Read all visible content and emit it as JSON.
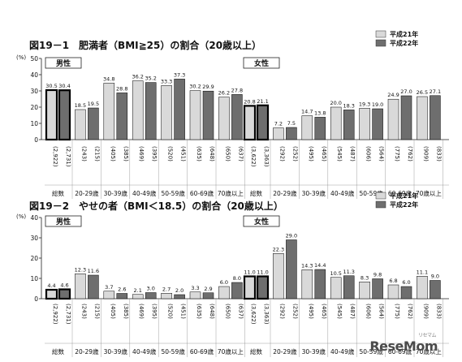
{
  "chart_data": [
    {
      "type": "bar",
      "title": "図19－1　肥満者（BMI≧25）の割合（20歳以上）",
      "ylabel": "(%)",
      "ylim": [
        0,
        50
      ],
      "yticks": [
        0,
        10,
        20,
        30,
        40,
        50
      ],
      "legend": [
        "平成21年",
        "平成22年"
      ],
      "legend_position": "top-right",
      "panels": [
        {
          "label": "男性",
          "groups": [
            {
              "label": "総数",
              "bars": [
                {
                  "value": 30.5,
                  "value_label": "30.5",
                  "n": "(2,922)"
                },
                {
                  "value": 30.4,
                  "value_label": "30.4",
                  "n": "(2,731)"
                }
              ]
            },
            {
              "label": "20-29歳",
              "bars": [
                {
                  "value": 18.5,
                  "value_label": "18.5",
                  "n": "(243)"
                },
                {
                  "value": 19.5,
                  "value_label": "19.5",
                  "n": "(215)"
                }
              ]
            },
            {
              "label": "30-39歳",
              "bars": [
                {
                  "value": 34.8,
                  "value_label": "34.8",
                  "n": "(405)"
                },
                {
                  "value": 28.8,
                  "value_label": "28.8",
                  "n": "(385)"
                }
              ]
            },
            {
              "label": "40-49歳",
              "bars": [
                {
                  "value": 36.2,
                  "value_label": "36.2",
                  "n": "(469)"
                },
                {
                  "value": 35.2,
                  "value_label": "35.2",
                  "n": "(395)"
                }
              ]
            },
            {
              "label": "50-59歳",
              "bars": [
                {
                  "value": 33.3,
                  "value_label": "33.3",
                  "n": "(520)"
                },
                {
                  "value": 37.3,
                  "value_label": "37.3",
                  "n": "(451)"
                }
              ]
            },
            {
              "label": "60-69歳",
              "bars": [
                {
                  "value": 30.2,
                  "value_label": "30.2",
                  "n": "(635)"
                },
                {
                  "value": 29.9,
                  "value_label": "29.9",
                  "n": "(648)"
                }
              ]
            },
            {
              "label": "70歳以上",
              "bars": [
                {
                  "value": 26.2,
                  "value_label": "26.2",
                  "n": "(650)"
                },
                {
                  "value": 27.8,
                  "value_label": "27.8",
                  "n": "(637)"
                }
              ]
            }
          ]
        },
        {
          "label": "女性",
          "groups": [
            {
              "label": "総数",
              "bars": [
                {
                  "value": 20.8,
                  "value_label": "20.8",
                  "n": "(3,622)"
                },
                {
                  "value": 21.1,
                  "value_label": "21.1",
                  "n": "(3,363)"
                }
              ]
            },
            {
              "label": "20-29歳",
              "bars": [
                {
                  "value": 7.2,
                  "value_label": "7.2",
                  "n": "(292)"
                },
                {
                  "value": 7.5,
                  "value_label": "7.5",
                  "n": "(252)"
                }
              ]
            },
            {
              "label": "30-39歳",
              "bars": [
                {
                  "value": 14.7,
                  "value_label": "14.7",
                  "n": "(495)"
                },
                {
                  "value": 13.8,
                  "value_label": "13.8",
                  "n": "(465)"
                }
              ]
            },
            {
              "label": "40-49歳",
              "bars": [
                {
                  "value": 20.0,
                  "value_label": "20.0",
                  "n": "(545)"
                },
                {
                  "value": 18.3,
                  "value_label": "18.3",
                  "n": "(487)"
                }
              ]
            },
            {
              "label": "50-59歳",
              "bars": [
                {
                  "value": 19.3,
                  "value_label": "19.3",
                  "n": "(606)"
                },
                {
                  "value": 19.0,
                  "value_label": "19.0",
                  "n": "(564)"
                }
              ]
            },
            {
              "label": "60-69歳",
              "bars": [
                {
                  "value": 24.9,
                  "value_label": "24.9",
                  "n": "(775)"
                },
                {
                  "value": 27.0,
                  "value_label": "27.0",
                  "n": "(762)"
                }
              ]
            },
            {
              "label": "70歳以上",
              "bars": [
                {
                  "value": 26.5,
                  "value_label": "26.5",
                  "n": "(909)"
                },
                {
                  "value": 27.1,
                  "value_label": "27.1",
                  "n": "(833)"
                }
              ]
            }
          ]
        }
      ]
    },
    {
      "type": "bar",
      "title": "図19－2　やせの者（BMI＜18.5）の割合（20歳以上）",
      "ylabel": "(%)",
      "ylim": [
        0,
        40
      ],
      "yticks": [
        0,
        10,
        20,
        30,
        40
      ],
      "legend": [
        "平成21年",
        "平成22年"
      ],
      "legend_position": "top-right",
      "panels": [
        {
          "label": "男性",
          "groups": [
            {
              "label": "総数",
              "bars": [
                {
                  "value": 4.4,
                  "value_label": "4.4",
                  "n": "(2,922)"
                },
                {
                  "value": 4.6,
                  "value_label": "4.6",
                  "n": "(2,731)"
                }
              ]
            },
            {
              "label": "20-29歳",
              "bars": [
                {
                  "value": 12.3,
                  "value_label": "12.3",
                  "n": "(243)"
                },
                {
                  "value": 11.6,
                  "value_label": "11.6",
                  "n": "(215)"
                }
              ]
            },
            {
              "label": "30-39歳",
              "bars": [
                {
                  "value": 3.7,
                  "value_label": "3.7",
                  "n": "(405)"
                },
                {
                  "value": 2.6,
                  "value_label": "2.6",
                  "n": "(385)"
                }
              ]
            },
            {
              "label": "40-49歳",
              "bars": [
                {
                  "value": 2.1,
                  "value_label": "2.1",
                  "n": "(469)"
                },
                {
                  "value": 3.0,
                  "value_label": "3.0",
                  "n": "(395)"
                }
              ]
            },
            {
              "label": "50-59歳",
              "bars": [
                {
                  "value": 2.7,
                  "value_label": "2.7",
                  "n": "(520)"
                },
                {
                  "value": 2.0,
                  "value_label": "2.0",
                  "n": "(451)"
                }
              ]
            },
            {
              "label": "60-69歳",
              "bars": [
                {
                  "value": 3.3,
                  "value_label": "3.3",
                  "n": "(635)"
                },
                {
                  "value": 2.9,
                  "value_label": "2.9",
                  "n": "(648)"
                }
              ]
            },
            {
              "label": "70歳以上",
              "bars": [
                {
                  "value": 6.0,
                  "value_label": "6.0",
                  "n": "(650)"
                },
                {
                  "value": 8.0,
                  "value_label": "8.0",
                  "n": "(637)"
                }
              ]
            }
          ]
        },
        {
          "label": "女性",
          "groups": [
            {
              "label": "総数",
              "bars": [
                {
                  "value": 11.0,
                  "value_label": "11.0",
                  "n": "(3,622)"
                },
                {
                  "value": 11.0,
                  "value_label": "11.0",
                  "n": "(3,363)"
                }
              ]
            },
            {
              "label": "20-29歳",
              "bars": [
                {
                  "value": 22.3,
                  "value_label": "22.3",
                  "n": "(292)"
                },
                {
                  "value": 29.0,
                  "value_label": "29.0",
                  "n": "(252)"
                }
              ]
            },
            {
              "label": "30-39歳",
              "bars": [
                {
                  "value": 14.3,
                  "value_label": "14.3",
                  "n": "(495)"
                },
                {
                  "value": 14.4,
                  "value_label": "14.4",
                  "n": "(465)"
                }
              ]
            },
            {
              "label": "40-49歳",
              "bars": [
                {
                  "value": 10.5,
                  "value_label": "10.5",
                  "n": "(545)"
                },
                {
                  "value": 11.3,
                  "value_label": "11.3",
                  "n": "(487)"
                }
              ]
            },
            {
              "label": "50-59歳",
              "bars": [
                {
                  "value": 8.3,
                  "value_label": "8.3",
                  "n": "(606)"
                },
                {
                  "value": 9.8,
                  "value_label": "9.8",
                  "n": "(564)"
                }
              ]
            },
            {
              "label": "60-69歳",
              "bars": [
                {
                  "value": 6.8,
                  "value_label": "6.8",
                  "n": "(775)"
                },
                {
                  "value": 6.0,
                  "value_label": "6.0",
                  "n": "(762)"
                }
              ]
            },
            {
              "label": "70歳以上",
              "bars": [
                {
                  "value": 11.1,
                  "value_label": "11.1",
                  "n": "(909)"
                },
                {
                  "value": 9.0,
                  "value_label": "9.0",
                  "n": "(833)"
                }
              ]
            }
          ]
        }
      ]
    }
  ],
  "style": {
    "color_h21": "#d9d9d9",
    "color_h22": "#6e6e6e",
    "color_axis": "#222222"
  },
  "watermark": "ReseMom",
  "watermark_sub": "リセマム"
}
